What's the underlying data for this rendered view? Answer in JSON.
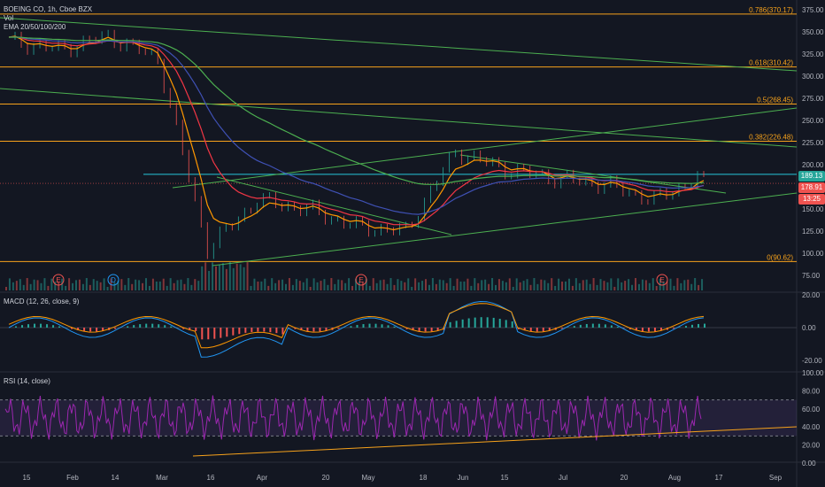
{
  "main": {
    "title": "BOEING CO, 1h, Cboe BZX",
    "vol_label": "Vol",
    "ema_label": "EMA 20/50/100/200",
    "price_ticks": [
      "375.00",
      "350.00",
      "325.00",
      "300.00",
      "275.00",
      "250.00",
      "225.00",
      "200.00",
      "175.00",
      "150.00",
      "125.00",
      "100.00",
      "75.00"
    ],
    "price_tags": [
      {
        "label": "189.13",
        "color": "#26a69a"
      },
      {
        "label": "178.91",
        "color": "#ef5350"
      },
      {
        "label": "13:25",
        "color": "#ef5350"
      }
    ],
    "fib_levels": [
      {
        "label": "0.786(370.17)",
        "price": 370.17
      },
      {
        "label": "0.618(310.42)",
        "price": 310.42
      },
      {
        "label": "0.5(268.45)",
        "price": 268.45
      },
      {
        "label": "0.382(226.48)",
        "price": 226.48
      },
      {
        "label": "0(90.62)",
        "price": 90.62
      }
    ],
    "horizontal_price": 189.13,
    "earnings_markers": [
      "E",
      "D",
      "E",
      "E"
    ]
  },
  "macd": {
    "label": "MACD (12, 26, close, 9)",
    "ticks": [
      "20.00",
      "0.00",
      "-20.00"
    ]
  },
  "rsi": {
    "label": "RSI (14, close)",
    "ticks": [
      "100.00",
      "80.00",
      "60.00",
      "40.00",
      "20.00",
      "0.00"
    ]
  },
  "time_axis": {
    "labels": [
      "15",
      "Feb",
      "14",
      "Mar",
      "16",
      "Apr",
      "20",
      "May",
      "18",
      "Jun",
      "15",
      "Jul",
      "20",
      "Aug",
      "17",
      "Sep"
    ]
  },
  "colors": {
    "background": "#131722",
    "fib": "#f7a21b",
    "trend": "#4caf50",
    "horizontal": "#26c6da",
    "ema20": "#ff9800",
    "ema50": "#f23645",
    "ema100": "#3f51b5",
    "ema200": "#4caf50",
    "rsi": "#9c27b0",
    "up": "#26a69a",
    "down": "#ef5350"
  },
  "chart_data": {
    "type": "line",
    "price_series": {
      "x": [
        "Jan 15",
        "Feb",
        "Feb 14",
        "Mar",
        "Mar 16",
        "Apr",
        "Apr 20",
        "May",
        "May 18",
        "Jun",
        "Jun 15",
        "Jul",
        "Jul 20",
        "Aug",
        "Aug 17"
      ],
      "close": [
        340,
        330,
        345,
        320,
        105,
        160,
        150,
        130,
        125,
        215,
        195,
        185,
        178,
        160,
        189
      ]
    },
    "ylim": [
      70,
      378
    ]
  }
}
